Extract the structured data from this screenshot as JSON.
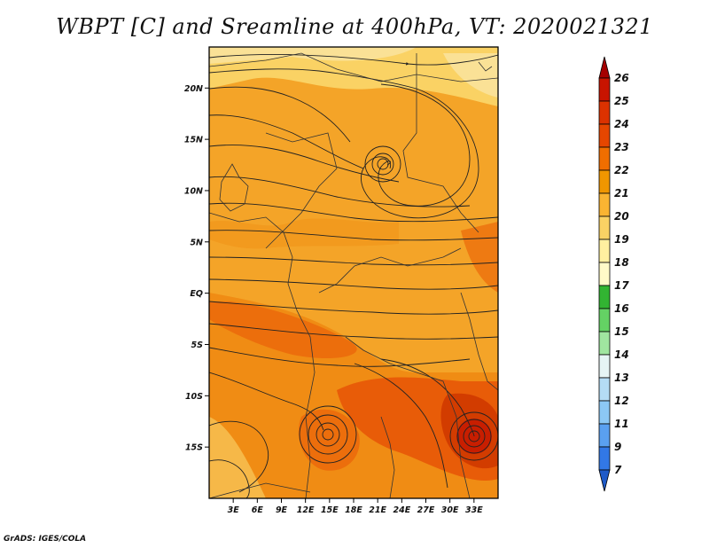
{
  "title": "WBPT [C] and Sreamline at 400hPa, VT: 2020021321",
  "credit": "GrADS: IGES/COLA",
  "map": {
    "lon_range": [
      0,
      36
    ],
    "lat_range": [
      -20,
      24
    ],
    "lat_labels": [
      "20N",
      "15N",
      "10N",
      "5N",
      "EQ",
      "5S",
      "10S",
      "15S"
    ],
    "lat_values": [
      20,
      15,
      10,
      5,
      0,
      -5,
      -10,
      -15
    ],
    "lon_labels": [
      "3E",
      "6E",
      "9E",
      "12E",
      "15E",
      "18E",
      "21E",
      "24E",
      "27E",
      "30E",
      "33E"
    ],
    "lon_values": [
      3,
      6,
      9,
      12,
      15,
      18,
      21,
      24,
      27,
      30,
      33
    ]
  },
  "colorbar": {
    "levels": [
      "26",
      "25",
      "24",
      "23",
      "22",
      "21",
      "20",
      "19",
      "18",
      "17",
      "16",
      "15",
      "14",
      "13",
      "12",
      "11",
      "9",
      "7"
    ],
    "colors": [
      "#a50000",
      "#c81400",
      "#dc3200",
      "#e64600",
      "#f06e00",
      "#f09600",
      "#fab432",
      "#fad264",
      "#fff0a0",
      "#fffac8",
      "#32b432",
      "#64d264",
      "#a0e6a0",
      "#e6f5f5",
      "#b4dcf5",
      "#8cc8f5",
      "#5aa0f0",
      "#3278e6",
      "#1e5ac8"
    ]
  }
}
